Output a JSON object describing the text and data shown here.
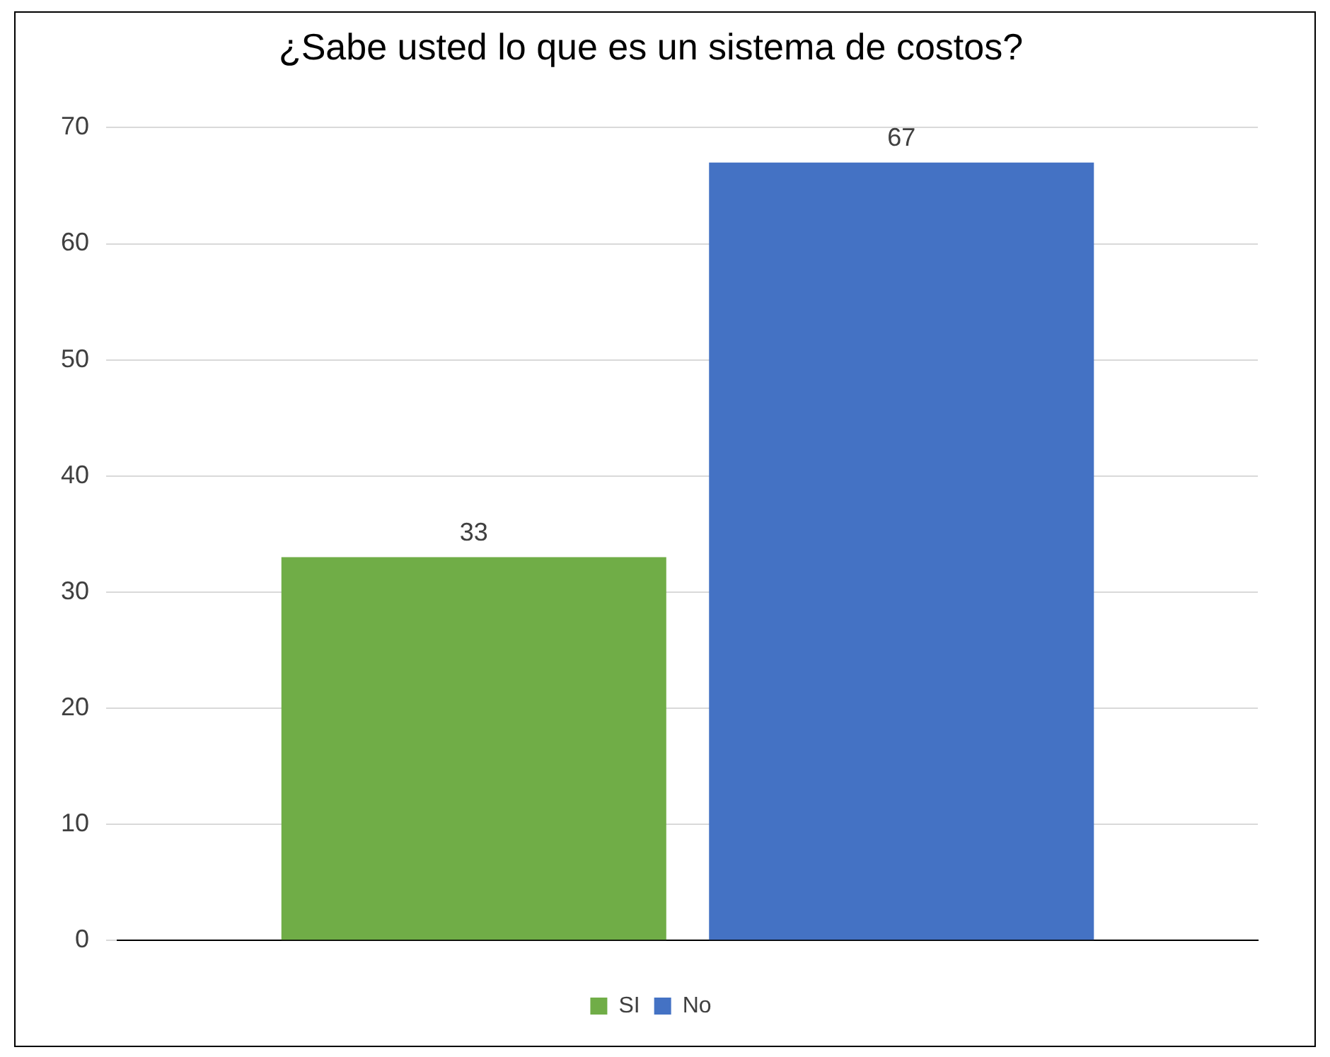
{
  "chart_data": {
    "type": "bar",
    "title": "¿Sabe usted lo que es un sistema de costos?",
    "categories": [
      null
    ],
    "series": [
      {
        "name": "SI",
        "color": "#70ad47",
        "values": [
          33
        ]
      },
      {
        "name": "No",
        "color": "#4472c4",
        "values": [
          67
        ]
      }
    ],
    "ylim": [
      0,
      70
    ],
    "yticks": [
      0,
      10,
      20,
      30,
      40,
      50,
      60,
      70
    ],
    "grid": "y",
    "legend": "bottom",
    "data_labels": true
  }
}
